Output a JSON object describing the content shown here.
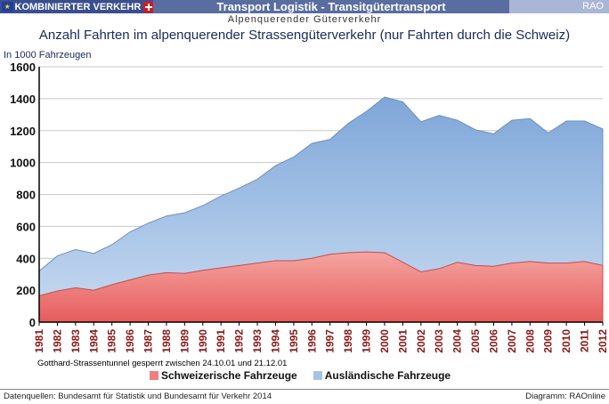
{
  "header": {
    "brand": "KOMBINIERTER VERKEHR",
    "title": "Transport Logistik - Transitgütertransport",
    "right": "RAO"
  },
  "subtitle": "Alpenquerender Güterverkehr",
  "colors": {
    "swiss_fill": "#f08080",
    "swiss_fill_top": "#f7a6a6",
    "foreign_fill": "#a6c3e6",
    "axis_label": "#8b1a1a",
    "text": "#1a2a5c"
  },
  "chart_data": {
    "type": "area",
    "title": "Anzahl Fahrten im alpenquerender Strassengüterverkehr (nur Fahrten durch die Schweiz)",
    "ylabel": "In 1000 Fahrzeugen",
    "xlabel": "",
    "stacked": true,
    "grid": true,
    "ylim": [
      0,
      1600
    ],
    "yticks": [
      "0",
      "200",
      "400",
      "600",
      "800",
      "1000",
      "1200",
      "1400",
      "1600"
    ],
    "x": [
      "1981",
      "1982",
      "1983",
      "1984",
      "1985",
      "1986",
      "1987",
      "1988",
      "1989",
      "1990",
      "1991",
      "1992",
      "1993",
      "1994",
      "1995",
      "1996",
      "1997",
      "1998",
      "1999",
      "2000",
      "2001",
      "2002",
      "2003",
      "2004",
      "2005",
      "2006",
      "2007",
      "2008",
      "2009",
      "2010",
      "2011",
      "2012"
    ],
    "series": [
      {
        "name": "Schweizerische Fahrzeuge",
        "values": [
          165,
          195,
          215,
          200,
          235,
          265,
          295,
          310,
          305,
          325,
          340,
          355,
          370,
          385,
          385,
          400,
          425,
          435,
          440,
          435,
          375,
          315,
          335,
          375,
          355,
          350,
          370,
          380,
          370,
          370,
          380,
          355
        ]
      },
      {
        "name": "Ausländische Fahrzeuge",
        "values": [
          155,
          220,
          240,
          230,
          250,
          300,
          325,
          355,
          380,
          405,
          450,
          485,
          525,
          595,
          650,
          720,
          720,
          810,
          880,
          975,
          1005,
          940,
          960,
          890,
          850,
          830,
          895,
          895,
          815,
          890,
          880,
          855
        ]
      }
    ],
    "total": [
      320,
      415,
      455,
      430,
      485,
      565,
      620,
      665,
      685,
      730,
      790,
      840,
      895,
      980,
      1035,
      1120,
      1145,
      1245,
      1320,
      1410,
      1380,
      1255,
      1295,
      1265,
      1205,
      1180,
      1265,
      1275,
      1185,
      1260,
      1260,
      1210
    ],
    "annotation": "Gotthard-Strassentunnel gesperrt zwischen 24.10.01 und 21.12.01",
    "legend_position": "bottom"
  },
  "footer": {
    "source": "Datenquellen: Bundesamt für Statistik und Bundesamt für Verkehr 2014",
    "credit": "Diagramm: RAOnline"
  }
}
